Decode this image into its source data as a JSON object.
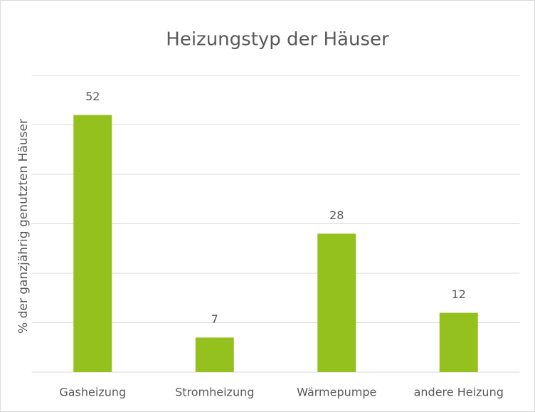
{
  "chart_data": {
    "type": "bar",
    "title": "Heizungstyp der Häuser",
    "y_label": "% der  ganzjährig genutzten Häuser",
    "categories": [
      "Gasheizung",
      "Stromheizung",
      "Wärmepumpe",
      "andere Heizung"
    ],
    "values": [
      52,
      7,
      28,
      12
    ],
    "color": "#95c11f",
    "ylim": [
      0,
      60
    ],
    "yticks": [
      0,
      10,
      20,
      30,
      40,
      50,
      60
    ],
    "grid": true
  }
}
